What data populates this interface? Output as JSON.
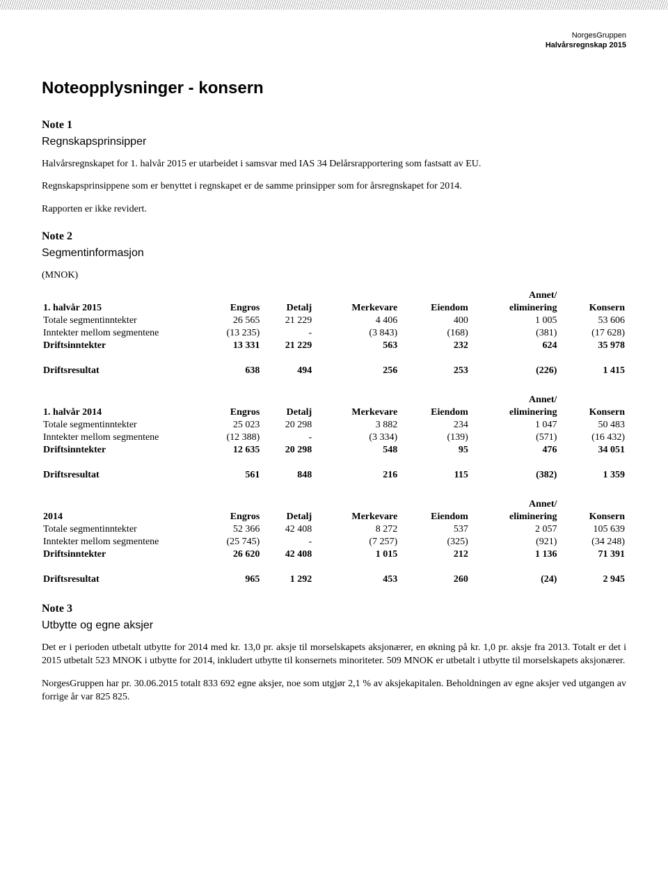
{
  "header": {
    "company": "NorgesGruppen",
    "report": "Halvårsregnskap 2015"
  },
  "page_title": "Noteopplysninger - konsern",
  "note1": {
    "heading": "Note 1",
    "subheading": "Regnskapsprinsipper",
    "p1": "Halvårsregnskapet for 1. halvår 2015 er utarbeidet i samsvar med IAS 34 Delårsrapportering som fastsatt av EU.",
    "p2": "Regnskapsprinsippene som er benyttet i regnskapet er de samme prinsipper som for årsregnskapet for 2014.",
    "p3": "Rapporten er ikke revidert."
  },
  "note2": {
    "heading": "Note 2",
    "subheading": "Segmentinformasjon",
    "unit": "(MNOK)",
    "columns": {
      "annet": "Annet/",
      "engros": "Engros",
      "detalj": "Detalj",
      "merkevare": "Merkevare",
      "eiendom": "Eiendom",
      "eliminering": "eliminering",
      "konsern": "Konsern"
    },
    "tables": [
      {
        "period": "1. halvår 2015",
        "rows": [
          {
            "label": "Totale segmentinntekter",
            "vals": [
              "26 565",
              "21 229",
              "4 406",
              "400",
              "1 005",
              "53 606"
            ],
            "bold": false
          },
          {
            "label": "Inntekter mellom segmentene",
            "vals": [
              "(13 235)",
              "-",
              "(3 843)",
              "(168)",
              "(381)",
              "(17 628)"
            ],
            "bold": false
          },
          {
            "label": "Driftsinntekter",
            "vals": [
              "13 331",
              "21 229",
              "563",
              "232",
              "624",
              "35 978"
            ],
            "bold": true
          }
        ],
        "result": {
          "label": "Driftsresultat",
          "vals": [
            "638",
            "494",
            "256",
            "253",
            "(226)",
            "1 415"
          ]
        }
      },
      {
        "period": "1. halvår 2014",
        "rows": [
          {
            "label": "Totale segmentinntekter",
            "vals": [
              "25 023",
              "20 298",
              "3 882",
              "234",
              "1 047",
              "50 483"
            ],
            "bold": false
          },
          {
            "label": "Inntekter mellom segmentene",
            "vals": [
              "(12 388)",
              "-",
              "(3 334)",
              "(139)",
              "(571)",
              "(16 432)"
            ],
            "bold": false
          },
          {
            "label": "Driftsinntekter",
            "vals": [
              "12 635",
              "20 298",
              "548",
              "95",
              "476",
              "34 051"
            ],
            "bold": true
          }
        ],
        "result": {
          "label": "Driftsresultat",
          "vals": [
            "561",
            "848",
            "216",
            "115",
            "(382)",
            "1 359"
          ]
        }
      },
      {
        "period": "2014",
        "rows": [
          {
            "label": "Totale segmentinntekter",
            "vals": [
              "52 366",
              "42 408",
              "8 272",
              "537",
              "2 057",
              "105 639"
            ],
            "bold": false
          },
          {
            "label": "Inntekter mellom segmentene",
            "vals": [
              "(25 745)",
              "-",
              "(7 257)",
              "(325)",
              "(921)",
              "(34 248)"
            ],
            "bold": false
          },
          {
            "label": "Driftsinntekter",
            "vals": [
              "26 620",
              "42 408",
              "1 015",
              "212",
              "1 136",
              "71 391"
            ],
            "bold": true
          }
        ],
        "result": {
          "label": "Driftsresultat",
          "vals": [
            "965",
            "1 292",
            "453",
            "260",
            "(24)",
            "2 945"
          ]
        }
      }
    ]
  },
  "note3": {
    "heading": "Note 3",
    "subheading": "Utbytte og egne aksjer",
    "p1": "Det er i perioden utbetalt utbytte for 2014 med kr. 13,0 pr. aksje til morselskapets aksjonærer, en økning på kr. 1,0 pr. aksje fra 2013. Totalt er det i 2015 utbetalt 523 MNOK i utbytte for 2014, inkludert utbytte til konsernets minoriteter. 509 MNOK er utbetalt i utbytte til morselskapets aksjonærer.",
    "p2": "NorgesGruppen har pr. 30.06.2015 totalt 833 692 egne aksjer, noe som utgjør 2,1 % av aksjekapitalen. Beholdningen av egne aksjer ved utgangen av forrige år var 825 825."
  }
}
